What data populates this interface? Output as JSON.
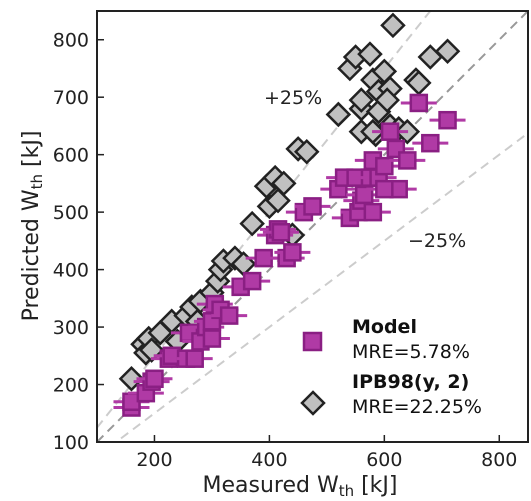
{
  "chart_data": {
    "type": "scatter",
    "title": "",
    "xlabel": "Measured W",
    "xlabel_sub": "th",
    "xlabel_unit": " [kJ]",
    "ylabel": "Predicted W",
    "ylabel_sub": "th",
    "ylabel_unit": " [kJ]",
    "xlim": [
      100,
      850
    ],
    "ylim": [
      100,
      850
    ],
    "xticks": [
      200,
      400,
      600,
      800
    ],
    "yticks": [
      100,
      200,
      300,
      400,
      500,
      600,
      700,
      800
    ],
    "grid": false,
    "legend_position": "bottom-right",
    "reference_lines": [
      {
        "label": "",
        "slope": 1.0,
        "color": "#999999",
        "style": "dashed"
      },
      {
        "label": "+25%",
        "slope": 1.25,
        "color": "#cccccc",
        "style": "dashed"
      },
      {
        "label": "−25%",
        "slope": 0.75,
        "color": "#cccccc",
        "style": "dashed"
      }
    ],
    "series": [
      {
        "name": "IPB98(y, 2)",
        "metric": "MRE=22.25%",
        "marker": "diamond",
        "color": "#c0c0c0",
        "edge": "#222222",
        "points": [
          [
            160,
            210
          ],
          [
            180,
            270
          ],
          [
            185,
            255
          ],
          [
            190,
            280
          ],
          [
            195,
            260
          ],
          [
            210,
            290
          ],
          [
            230,
            310
          ],
          [
            240,
            275
          ],
          [
            255,
            320
          ],
          [
            265,
            335
          ],
          [
            275,
            310
          ],
          [
            280,
            345
          ],
          [
            300,
            360
          ],
          [
            310,
            380
          ],
          [
            315,
            400
          ],
          [
            320,
            415
          ],
          [
            340,
            420
          ],
          [
            355,
            410
          ],
          [
            370,
            480
          ],
          [
            395,
            545
          ],
          [
            400,
            510
          ],
          [
            410,
            560
          ],
          [
            415,
            520
          ],
          [
            425,
            550
          ],
          [
            440,
            460
          ],
          [
            450,
            610
          ],
          [
            465,
            605
          ],
          [
            520,
            670
          ],
          [
            540,
            750
          ],
          [
            550,
            770
          ],
          [
            560,
            640
          ],
          [
            560,
            680
          ],
          [
            575,
            775
          ],
          [
            580,
            730
          ],
          [
            585,
            635
          ],
          [
            590,
            675
          ],
          [
            590,
            710
          ],
          [
            600,
            745
          ],
          [
            610,
            650
          ],
          [
            610,
            715
          ],
          [
            615,
            825
          ],
          [
            625,
            645
          ],
          [
            640,
            640
          ],
          [
            655,
            730
          ],
          [
            660,
            725
          ],
          [
            680,
            770
          ],
          [
            710,
            780
          ],
          [
            605,
            695
          ],
          [
            580,
            640
          ],
          [
            560,
            695
          ]
        ]
      },
      {
        "name": "Model",
        "metric": "MRE=5.78%",
        "marker": "square",
        "color": "#b03aa5",
        "edge": "#8a1f83",
        "points": [
          [
            160,
            160
          ],
          [
            160,
            170
          ],
          [
            185,
            185
          ],
          [
            195,
            205
          ],
          [
            200,
            210
          ],
          [
            225,
            245
          ],
          [
            230,
            250
          ],
          [
            255,
            245
          ],
          [
            260,
            290
          ],
          [
            270,
            245
          ],
          [
            280,
            275
          ],
          [
            290,
            300
          ],
          [
            300,
            280
          ],
          [
            300,
            310
          ],
          [
            305,
            340
          ],
          [
            315,
            330
          ],
          [
            330,
            320
          ],
          [
            350,
            370
          ],
          [
            370,
            380
          ],
          [
            390,
            420
          ],
          [
            410,
            460
          ],
          [
            415,
            470
          ],
          [
            420,
            465
          ],
          [
            430,
            420
          ],
          [
            440,
            430
          ],
          [
            460,
            500
          ],
          [
            475,
            510
          ],
          [
            520,
            540
          ],
          [
            530,
            560
          ],
          [
            540,
            490
          ],
          [
            550,
            560
          ],
          [
            555,
            500
          ],
          [
            560,
            520
          ],
          [
            565,
            530
          ],
          [
            575,
            560
          ],
          [
            580,
            590
          ],
          [
            590,
            560
          ],
          [
            600,
            580
          ],
          [
            610,
            640
          ],
          [
            620,
            610
          ],
          [
            625,
            540
          ],
          [
            640,
            590
          ],
          [
            660,
            690
          ],
          [
            680,
            620
          ],
          [
            710,
            660
          ],
          [
            600,
            540
          ],
          [
            580,
            500
          ]
        ]
      }
    ],
    "annotations": [
      "+25%",
      "−25%"
    ]
  }
}
